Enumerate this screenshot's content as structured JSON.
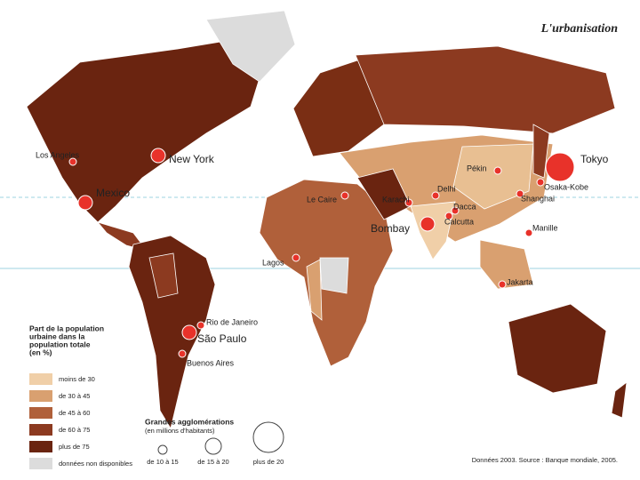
{
  "title": "L'urbanisation",
  "cities": [
    "Los Angeles",
    "New York",
    "Mexico",
    "Le Caire",
    "Karachi",
    "Delhi",
    "Pékin",
    "Tokyo",
    "Osaka-Kobe",
    "Shanghai",
    "Dacca",
    "Calcutta",
    "Bombay",
    "Manille",
    "Lagos",
    "Jakarta",
    "Rio de Janeiro",
    "São Paulo",
    "Buenos Aires"
  ],
  "legend": {
    "title": [
      "Part de la population",
      "urbaine dans la",
      "population totale",
      "(en %)"
    ],
    "items": [
      {
        "label": "moins de 30",
        "color": "#f0cfa8"
      },
      {
        "label": "de 30 à 45",
        "color": "#d9a070"
      },
      {
        "label": "de 45 à 60",
        "color": "#b0603a"
      },
      {
        "label": "de 60 à 75",
        "color": "#8c3a20"
      },
      {
        "label": "plus de 75",
        "color": "#6a2410"
      },
      {
        "label": "données non disponibles",
        "color": "#dcdcdc"
      }
    ]
  },
  "bubbles": {
    "title": "Grandes agglomérations",
    "subtitle": "(en millions d'habitants)",
    "items": [
      "de 10 à 15",
      "de 15 à 20",
      "plus de 20"
    ]
  },
  "source": "Données 2003. Source : Banque mondiale, 2005."
}
